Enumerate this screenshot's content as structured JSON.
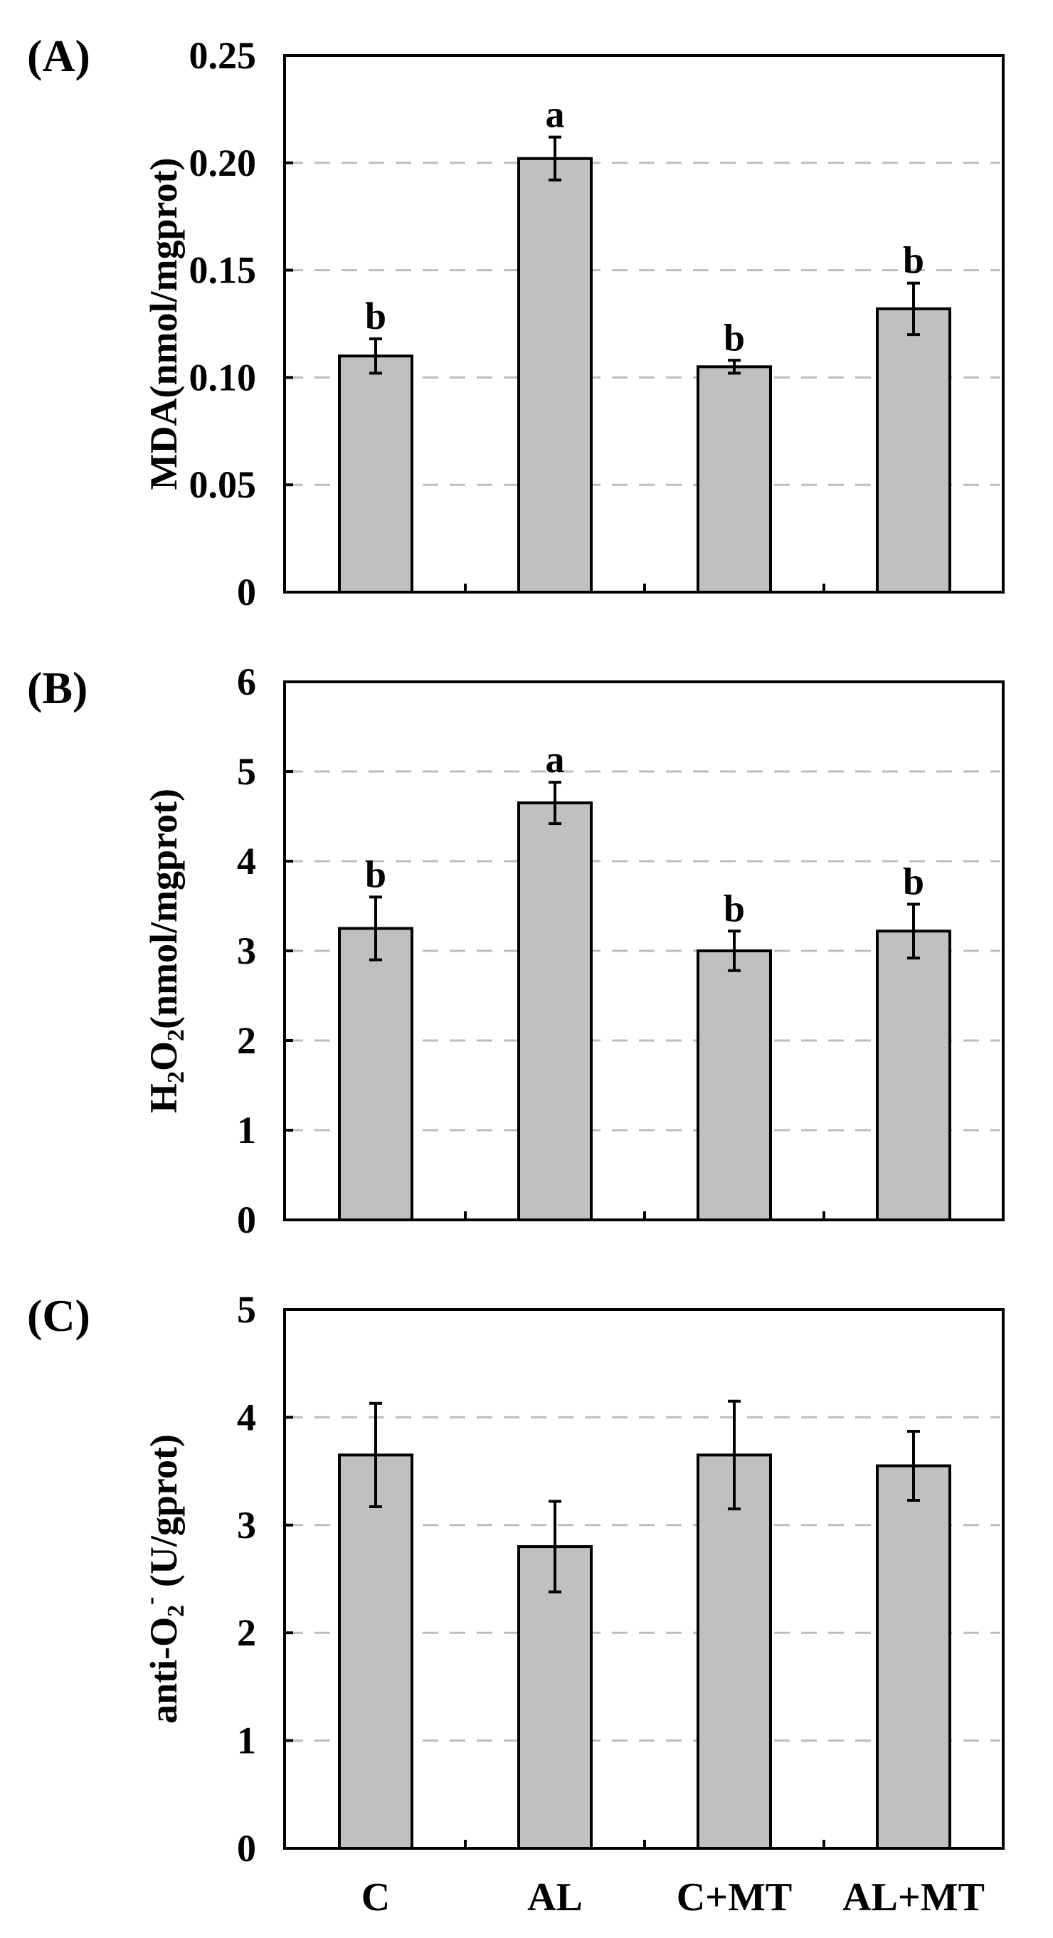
{
  "colors": {
    "bar_fill": "#c0c0c0",
    "bar_edge": "#000000",
    "grid": "#bdbdbd"
  },
  "chart_data": [
    {
      "type": "bar",
      "panel": "(A)",
      "ylabel": "MDA(nmol/mgprot)",
      "categories": [
        "C",
        "AL",
        "C+MT",
        "AL+MT"
      ],
      "values": [
        0.11,
        0.202,
        0.105,
        0.132
      ],
      "errors": [
        0.008,
        0.01,
        0.003,
        0.012
      ],
      "significance": [
        "b",
        "a",
        "b",
        "b"
      ],
      "ylim": [
        0,
        0.25
      ],
      "yticks": [
        0,
        0.05,
        0.1,
        0.15,
        0.2,
        0.25
      ],
      "ytick_labels": [
        "0",
        "0.05",
        "0.10",
        "0.15",
        "0.20",
        "0.25"
      ],
      "grid": "dashed horizontal",
      "show_categories": false
    },
    {
      "type": "bar",
      "panel": "(B)",
      "ylabel": {
        "base1": "H",
        "sub1": "2",
        "base2": "O",
        "sub2": "2",
        "rest": "(nmol/mgprot)"
      },
      "categories": [
        "C",
        "AL",
        "C+MT",
        "AL+MT"
      ],
      "values": [
        3.25,
        4.65,
        3.0,
        3.22
      ],
      "errors": [
        0.35,
        0.23,
        0.22,
        0.3
      ],
      "significance": [
        "b",
        "a",
        "b",
        "b"
      ],
      "ylim": [
        0,
        6
      ],
      "yticks": [
        0,
        1,
        2,
        3,
        4,
        5,
        6
      ],
      "ytick_labels": [
        "0",
        "1",
        "2",
        "3",
        "4",
        "5",
        "6"
      ],
      "grid": "dashed horizontal",
      "show_categories": false
    },
    {
      "type": "bar",
      "panel": "(C)",
      "ylabel": {
        "base1": "anti-O",
        "sub1": "2",
        "sup1": "-",
        "rest": " (U/gprot)"
      },
      "categories": [
        "C",
        "AL",
        "C+MT",
        "AL+MT"
      ],
      "values": [
        3.65,
        2.8,
        3.65,
        3.55
      ],
      "errors": [
        0.48,
        0.42,
        0.5,
        0.32
      ],
      "significance": [
        "",
        "",
        "",
        ""
      ],
      "ylim": [
        0,
        5
      ],
      "yticks": [
        0,
        1,
        2,
        3,
        4,
        5
      ],
      "ytick_labels": [
        "0",
        "1",
        "2",
        "3",
        "4",
        "5"
      ],
      "grid": "dashed horizontal",
      "show_categories": true
    }
  ]
}
